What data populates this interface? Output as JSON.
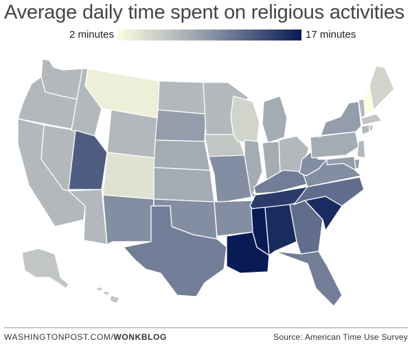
{
  "title": "Average daily time spent on religious activities",
  "legend": {
    "min_label": "2 minutes",
    "max_label": "17 minutes",
    "min_value": 2,
    "max_value": 17,
    "color_low": "#fdfde0",
    "color_high": "#081b54"
  },
  "footer": {
    "credit_site": "WASHINGTONPOST.COM/",
    "credit_brand": "WONKBLOG",
    "source": "Source: American Time Use Survey"
  },
  "map_data": {
    "units": "minutes per day",
    "states": {
      "WA": 7,
      "OR": 7,
      "CA": 7,
      "NV": 7,
      "ID": 7,
      "MT": 3,
      "WY": 7,
      "UT": 13,
      "AZ": 7,
      "CO": 4,
      "NM": 10,
      "ND": 7,
      "SD": 9,
      "NE": 8,
      "KS": 8,
      "OK": 10,
      "TX": 11,
      "MN": 7,
      "IA": 6,
      "MO": 10,
      "AR": 10,
      "LA": 17,
      "WI": 5,
      "IL": 8,
      "MI": 8,
      "IN": 8,
      "OH": 7,
      "KY": 11,
      "TN": 15,
      "MS": 17,
      "AL": 16,
      "GA": 12,
      "FL": 11,
      "SC": 16,
      "NC": 12,
      "VA": 10,
      "WV": 10,
      "PA": 8,
      "NY": 9,
      "VT": 7,
      "NH": 2,
      "ME": 5,
      "MA": 6,
      "CT": 7,
      "RI": 6,
      "NJ": 7,
      "DE": 9,
      "MD": 9,
      "AK": 6,
      "HI": 6
    }
  }
}
